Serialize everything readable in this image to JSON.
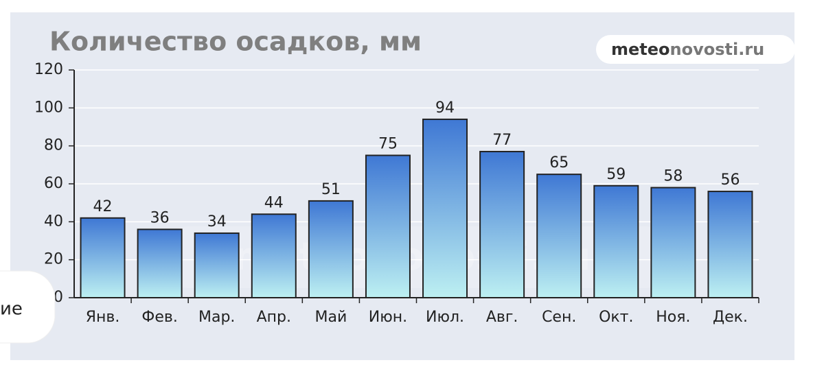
{
  "chart_data": {
    "type": "bar",
    "title": "Количество осадков, мм",
    "categories": [
      "Янв.",
      "Фев.",
      "Мар.",
      "Апр.",
      "Май",
      "Июн.",
      "Июл.",
      "Авг.",
      "Сен.",
      "Окт.",
      "Ноя.",
      "Дек."
    ],
    "values": [
      42,
      36,
      34,
      44,
      51,
      75,
      94,
      77,
      65,
      59,
      58,
      56
    ],
    "color": "#3f78d4",
    "ylim": [
      0,
      120
    ],
    "yticks": [
      0,
      20,
      40,
      60,
      80,
      100,
      120
    ],
    "grid": true
  },
  "logo": [
    "meteo",
    "novosti.ru"
  ],
  "watermark": "meteonovosti.ru",
  "side_text": "ие"
}
